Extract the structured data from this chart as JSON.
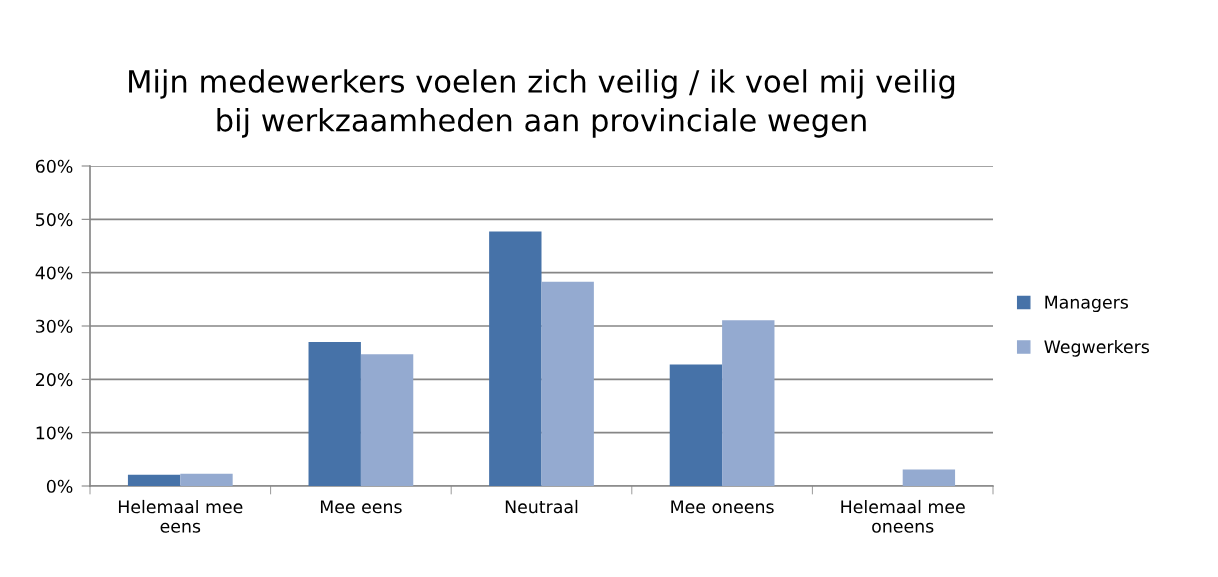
{
  "chart_data": {
    "type": "bar",
    "title": "Mijn medewerkers voelen zich veilig / ik voel mij veilig\nbij werkzaamheden aan provinciale wegen",
    "categories": [
      "Helemaal mee\neens",
      "Mee eens",
      "Neutraal",
      "Mee oneens",
      "Helemaal mee\noneens"
    ],
    "series": [
      {
        "name": "Managers",
        "color": "#4672a8",
        "values": [
          2.1,
          27.0,
          47.7,
          22.8,
          0
        ]
      },
      {
        "name": "Wegwerkers",
        "color": "#94aad0",
        "values": [
          2.3,
          24.7,
          38.3,
          31.1,
          3.1
        ]
      }
    ],
    "ylim": [
      0,
      60
    ],
    "yticks": [
      {
        "value": 0,
        "label": "0%"
      },
      {
        "value": 10,
        "label": "10%"
      },
      {
        "value": 20,
        "label": "20%"
      },
      {
        "value": 30,
        "label": "30%"
      },
      {
        "value": 40,
        "label": "40%"
      },
      {
        "value": 50,
        "label": "50%"
      },
      {
        "value": 60,
        "label": "60%"
      }
    ],
    "grid": "y",
    "legend": "right"
  }
}
